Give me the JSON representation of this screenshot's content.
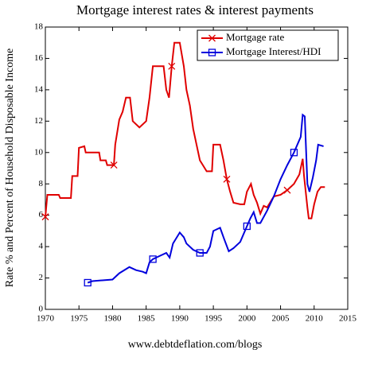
{
  "chart_data": {
    "type": "line",
    "title": "Mortgage interest rates & interest payments",
    "y_label": "Rate % and Percent of Household Disposable Income",
    "footer": "www.debtdeflation.com/blogs",
    "xlim": [
      1970,
      2015
    ],
    "xticks": [
      1970,
      1975,
      1980,
      1985,
      1990,
      1995,
      2000,
      2005,
      2010,
      2015
    ],
    "ylim": [
      0,
      18
    ],
    "yticks": [
      0,
      2,
      4,
      6,
      8,
      10,
      12,
      14,
      16,
      18
    ],
    "legend": "top-right",
    "series": [
      {
        "name": "Mortgage rate",
        "color": "#e00000",
        "x": [
          1970.0,
          1970.3,
          1972,
          1972.2,
          1973.8,
          1974,
          1974.8,
          1975,
          1975.8,
          1976,
          1978,
          1978.2,
          1979,
          1979.2,
          1980.2,
          1980.4,
          1981,
          1981.5,
          1982,
          1982.6,
          1983,
          1984,
          1985,
          1985.5,
          1986,
          1987.6,
          1988,
          1988.4,
          1988.8,
          1989.2,
          1990,
          1990.6,
          1991,
          1991.5,
          1992,
          1992.5,
          1993,
          1994,
          1994.8,
          1995,
          1996,
          1996.5,
          1997,
          1997.5,
          1998,
          1999,
          1999.6,
          2000,
          2000.6,
          2001,
          2001.5,
          2002,
          2002.5,
          2003,
          2004,
          2005,
          2006,
          2007,
          2007.8,
          2008.3,
          2008.5,
          2009,
          2009.2,
          2009.6,
          2010,
          2010.5,
          2011,
          2011.6
        ],
        "values": [
          5.9,
          7.3,
          7.3,
          7.1,
          7.1,
          8.5,
          8.5,
          10.3,
          10.4,
          10.0,
          10.0,
          9.5,
          9.5,
          9.2,
          9.2,
          10.5,
          12.1,
          12.6,
          13.5,
          13.5,
          12.0,
          11.6,
          12.0,
          13.5,
          15.5,
          15.5,
          14.0,
          13.5,
          15.5,
          17.0,
          17.0,
          15.5,
          14.0,
          13.0,
          11.5,
          10.5,
          9.5,
          8.8,
          8.8,
          10.5,
          10.5,
          9.5,
          8.3,
          7.5,
          6.8,
          6.7,
          6.7,
          7.5,
          8.0,
          7.3,
          6.8,
          6.1,
          6.6,
          6.5,
          7.2,
          7.3,
          7.6,
          8.0,
          8.6,
          9.6,
          8.5,
          6.5,
          5.8,
          5.8,
          6.7,
          7.5,
          7.8,
          7.8
        ]
      },
      {
        "name": "Mortgage Interest/HDI",
        "color": "#0000dd",
        "x": [
          1976.3,
          1977,
          1980,
          1981,
          1982.5,
          1983.5,
          1984.5,
          1985,
          1985.5,
          1986,
          1987,
          1988,
          1988.5,
          1989,
          1990,
          1990.6,
          1991,
          1992,
          1993,
          1994,
          1994.5,
          1995,
          1996,
          1996.6,
          1997.3,
          1998,
          1999,
          2000,
          2000.5,
          2001,
          2001.5,
          2002,
          2003,
          2004,
          2005,
          2006,
          2007,
          2008,
          2008.3,
          2008.6,
          2009,
          2009.3,
          2009.8,
          2010.3,
          2010.6,
          2011.4
        ],
        "values": [
          1.7,
          1.8,
          1.9,
          2.3,
          2.7,
          2.5,
          2.4,
          2.3,
          3.0,
          3.2,
          3.4,
          3.6,
          3.3,
          4.2,
          4.9,
          4.6,
          4.2,
          3.8,
          3.6,
          3.6,
          4.0,
          5.0,
          5.2,
          4.5,
          3.7,
          3.9,
          4.3,
          5.3,
          5.8,
          6.2,
          5.5,
          5.5,
          6.3,
          7.2,
          8.3,
          9.2,
          10.0,
          11.0,
          12.4,
          12.3,
          8.0,
          7.5,
          8.4,
          9.5,
          10.5,
          10.4
        ]
      }
    ]
  }
}
